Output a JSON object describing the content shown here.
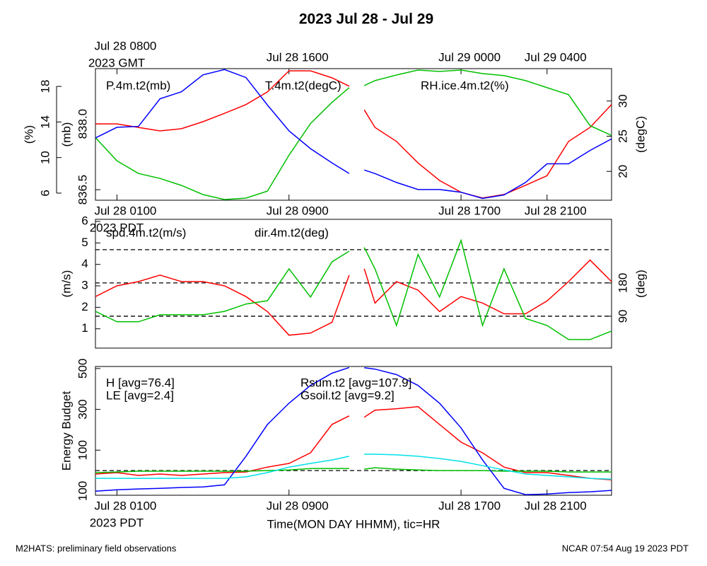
{
  "title": "2023 Jul 28 - Jul 29",
  "footer_left": "M2HATS: preliminary field observations",
  "footer_right": "NCAR 07:54 Aug 19 2023 PDT",
  "chart_data": [
    {
      "type": "line",
      "x": [
        0,
        1,
        2,
        3,
        4,
        5,
        6,
        7,
        8,
        9,
        10,
        11,
        11.8,
        12.2,
        12.5,
        13,
        14,
        15,
        16,
        17,
        18,
        19,
        20,
        21,
        22,
        23,
        24
      ],
      "xlim": [
        0,
        24
      ],
      "xticks": [
        {
          "value": 1,
          "label": "Jul 28 0100"
        },
        {
          "value": 9,
          "label": "Jul 28 0900"
        },
        {
          "value": 17,
          "label": "Jul 28 1700"
        },
        {
          "value": 21,
          "label": "Jul 28 2100"
        }
      ],
      "xtick_zone": "2023 PDT",
      "x2ticks": [
        {
          "value": 1,
          "label": "Jul 28 0800"
        },
        {
          "value": 9,
          "label": "Jul 28 1600"
        },
        {
          "value": 17,
          "label": "Jul 29 0000"
        },
        {
          "value": 21,
          "label": "Jul 29 0400"
        }
      ],
      "x2tick_zone": "2023 GMT",
      "ylabel": "(%)",
      "ylim": [
        5.2,
        20
      ],
      "yticks": [
        6,
        10,
        14,
        18
      ],
      "y3label": "(mb)",
      "y3lim": [
        836.26,
        839.26
      ],
      "y3ticks": [
        836.5,
        {
          "value": 838,
          "label": "838.0"
        }
      ],
      "y2label": "(degC)",
      "y2lim": [
        15.9,
        34.6
      ],
      "y2ticks": [
        20,
        25,
        30
      ],
      "series": [
        {
          "name": "P.4m.t2(mb)",
          "color": "#ff0000",
          "axis": "y3",
          "values": [
            838.0,
            838.0,
            837.92,
            837.84,
            837.89,
            838.05,
            838.24,
            838.44,
            838.73,
            839.21,
            839.21,
            839.05,
            838.86,
            null,
            838.32,
            837.92,
            837.6,
            837.11,
            836.71,
            836.44,
            836.31,
            836.39,
            836.6,
            836.82,
            837.6,
            837.92,
            838.44
          ]
        },
        {
          "name": "T.4m.t2(degC)",
          "color": "#00c000",
          "axis": "y2",
          "values": [
            24.8,
            21.5,
            19.7,
            19.0,
            18.0,
            16.7,
            16.0,
            16.2,
            17.2,
            22.3,
            26.8,
            29.8,
            31.9,
            null,
            32.2,
            32.9,
            33.7,
            34.4,
            34.2,
            34.4,
            33.9,
            33.6,
            32.9,
            31.9,
            30.9,
            26.5,
            25.1
          ]
        },
        {
          "name": "RH.ice.4m.t2(%)",
          "color": "#0000ff",
          "axis": "y",
          "values": [
            12.2,
            13.4,
            13.5,
            16.6,
            17.4,
            19.3,
            19.9,
            19,
            15.9,
            13,
            11,
            9.4,
            8.2,
            null,
            8.6,
            8.2,
            7.2,
            6.4,
            6.4,
            6.1,
            5.4,
            5.8,
            7.2,
            9.3,
            9.3,
            10.8,
            12.1
          ]
        }
      ]
    },
    {
      "type": "line",
      "x": [
        0,
        1,
        2,
        3,
        4,
        5,
        6,
        7,
        8,
        9,
        10,
        11,
        11.8,
        12.2,
        12.5,
        13,
        14,
        15,
        16,
        17,
        18,
        19,
        20,
        21,
        22,
        23,
        24
      ],
      "xlim": [
        0,
        24
      ],
      "ylabel": "(m/s)",
      "ylim": [
        0.1,
        6.1
      ],
      "yticks": [
        1,
        2,
        3,
        4,
        5,
        6
      ],
      "y2label": "(deg)",
      "y2lim": [
        3.8,
        352
      ],
      "y2ticks": [
        90,
        180
      ],
      "y2_dashed_lines": [
        90,
        180,
        270
      ],
      "series": [
        {
          "name": "spd.4m.t2(m/s)",
          "color": "#ff0000",
          "axis": "y",
          "values": [
            2.5,
            3.0,
            3.2,
            3.5,
            3.2,
            3.2,
            3.0,
            2.5,
            1.8,
            0.7,
            0.8,
            1.3,
            3.5,
            null,
            3.8,
            2.2,
            3.2,
            2.8,
            1.8,
            2.5,
            2.2,
            1.7,
            1.7,
            2.3,
            3.2,
            4.2,
            3.2
          ]
        },
        {
          "name": "dir.4m.t2(deg)",
          "color": "#00c000",
          "axis": "y2",
          "values": [
            103,
            75,
            75,
            94,
            94,
            94,
            103,
            123,
            132,
            218,
            142,
            237,
            266,
            null,
            276,
            218,
            65,
            257,
            142,
            295,
            65,
            218,
            84,
            65,
            27,
            27,
            50
          ]
        }
      ]
    },
    {
      "type": "line",
      "x": [
        0,
        1,
        2,
        3,
        4,
        5,
        6,
        7,
        8,
        9,
        10,
        11,
        11.8,
        12.2,
        12.5,
        13,
        14,
        15,
        16,
        17,
        18,
        19,
        20,
        21,
        22,
        23,
        24
      ],
      "xlim": [
        0,
        24
      ],
      "xticks": [
        {
          "value": 1,
          "label": "Jul 28 0100"
        },
        {
          "value": 9,
          "label": "Jul 28 0900"
        },
        {
          "value": 17,
          "label": "Jul 28 1700"
        },
        {
          "value": 21,
          "label": "Jul 28 2100"
        }
      ],
      "xtick_zone": "2023 PDT",
      "xlabel": "Time(MON DAY HHMM), tic=HR",
      "ylabel": "Energy Budget",
      "ylim": [
        -121,
        510
      ],
      "yticks": [
        {
          "value": -100,
          "label": "100"
        },
        100,
        300,
        500
      ],
      "y_dashed_lines": [
        0
      ],
      "series": [
        {
          "name": "H [avg=76.4]",
          "color": "#ff0000",
          "axis": "y",
          "values": [
            -17,
            -10,
            -24,
            -17,
            -24,
            -17,
            -10,
            -7,
            17,
            35,
            87,
            226,
            268,
            null,
            261,
            296,
            303,
            313,
            226,
            139,
            87,
            17,
            -10,
            -10,
            -24,
            -38,
            -45
          ]
        },
        {
          "name": "LE [avg=2.4]",
          "color": "#00c000",
          "axis": "y",
          "values": [
            -10,
            -7,
            -3,
            -3,
            -3,
            -3,
            -3,
            -3,
            0,
            3,
            10,
            10,
            10,
            null,
            7,
            14,
            7,
            3,
            0,
            0,
            0,
            -3,
            -3,
            -3,
            -7,
            -7,
            -7
          ]
        },
        {
          "name": "Rsum.t2 [avg=107.9]",
          "color": "#0000ff",
          "axis": "y",
          "values": [
            -101,
            -94,
            -90,
            -87,
            -83,
            -80,
            -70,
            70,
            226,
            330,
            417,
            477,
            505,
            null,
            504,
            497,
            470,
            417,
            330,
            209,
            52,
            -87,
            -118,
            -115,
            -108,
            -104,
            -97
          ]
        },
        {
          "name": "Gsoil.t2 [avg=9.2]",
          "color": "#00e0e8",
          "axis": "y",
          "values": [
            -38,
            -38,
            -38,
            -38,
            -38,
            -38,
            -38,
            -31,
            -10,
            17,
            35,
            52,
            70,
            null,
            80,
            80,
            77,
            70,
            59,
            45,
            24,
            3,
            -17,
            -24,
            -31,
            -38,
            -42
          ]
        }
      ]
    }
  ]
}
